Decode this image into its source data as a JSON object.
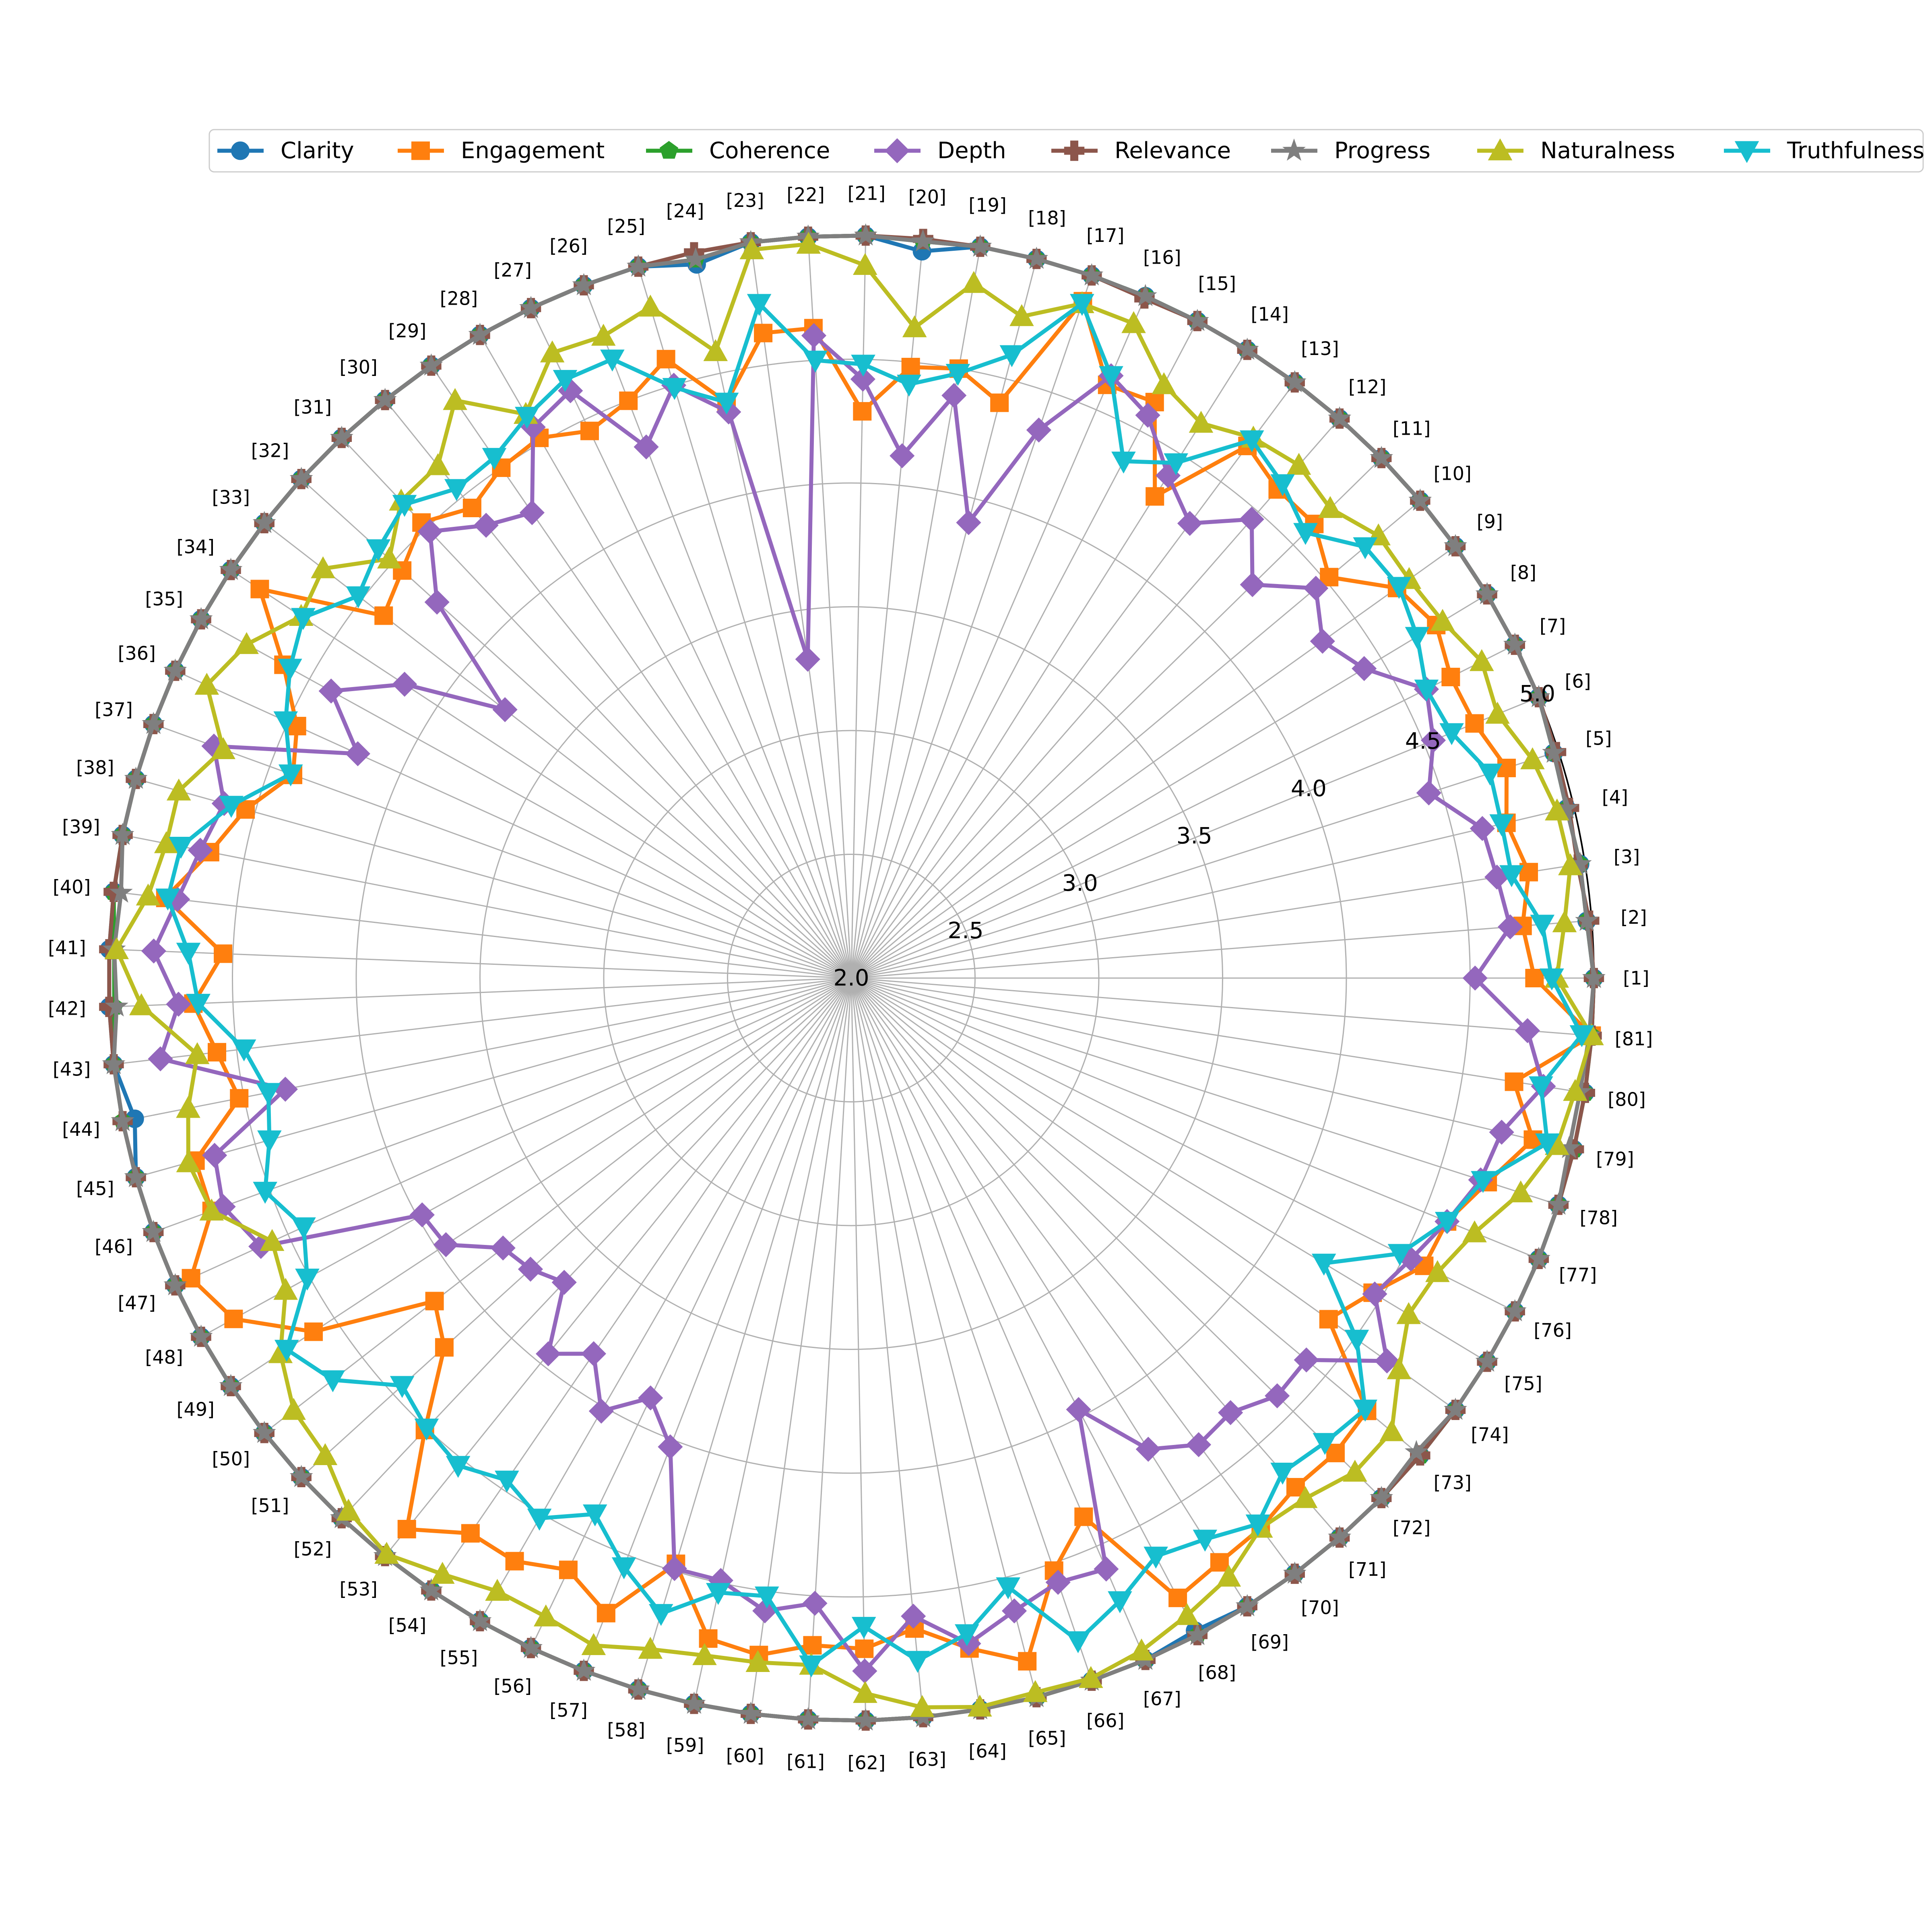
{
  "chart_data": {
    "type": "radar",
    "categories": [
      "[1]",
      "[2]",
      "[3]",
      "[4]",
      "[5]",
      "[6]",
      "[7]",
      "[8]",
      "[9]",
      "[10]",
      "[11]",
      "[12]",
      "[13]",
      "[14]",
      "[15]",
      "[16]",
      "[17]",
      "[18]",
      "[19]",
      "[20]",
      "[21]",
      "[22]",
      "[23]",
      "[24]",
      "[25]",
      "[26]",
      "[27]",
      "[28]",
      "[29]",
      "[30]",
      "[31]",
      "[32]",
      "[33]",
      "[34]",
      "[35]",
      "[36]",
      "[37]",
      "[38]",
      "[39]",
      "[40]",
      "[41]",
      "[42]",
      "[43]",
      "[44]",
      "[45]",
      "[46]",
      "[47]",
      "[48]",
      "[49]",
      "[50]",
      "[51]",
      "[52]",
      "[53]",
      "[54]",
      "[55]",
      "[56]",
      "[57]",
      "[58]",
      "[59]",
      "[60]",
      "[61]",
      "[62]",
      "[63]",
      "[64]",
      "[65]",
      "[66]",
      "[67]",
      "[68]",
      "[69]",
      "[70]",
      "[71]",
      "[72]",
      "[73]",
      "[74]",
      "[75]",
      "[76]",
      "[77]",
      "[78]",
      "[79]",
      "[80]",
      "[81]"
    ],
    "rlim": [
      2.0,
      5.0
    ],
    "rticks": [
      2.0,
      2.5,
      3.0,
      3.5,
      4.0,
      4.5,
      5.0
    ],
    "rtick_labels": [
      "2.0",
      "2.5",
      "3.0",
      "3.5",
      "4.0",
      "4.5",
      "5.0"
    ],
    "grid": true,
    "legend_position": "top",
    "series": [
      {
        "name": "Clarity",
        "color": "#1f77b4",
        "marker": "circle",
        "values": [
          5,
          4.98,
          4.98,
          4.97,
          4.98,
          5,
          5,
          5,
          5,
          5,
          5,
          5,
          5,
          5,
          5,
          5,
          5,
          5,
          5,
          4.95,
          5,
          5,
          5,
          4.95,
          5,
          5,
          5,
          5,
          5,
          5,
          5,
          5,
          5,
          5,
          5,
          5,
          5,
          5,
          5,
          5,
          5,
          5,
          5,
          4.95,
          5,
          5,
          5,
          5,
          5,
          5,
          5,
          5,
          5,
          5,
          5,
          5,
          5,
          5,
          5,
          5,
          5,
          5,
          5,
          5,
          5,
          5,
          5,
          4.98,
          5,
          5,
          5,
          5,
          5,
          5,
          5,
          5,
          5,
          5,
          5,
          5,
          5
        ]
      },
      {
        "name": "Engagement",
        "color": "#ff7f0e",
        "marker": "square",
        "values": [
          4.76,
          4.72,
          4.77,
          4.72,
          4.78,
          4.72,
          4.71,
          4.76,
          4.71,
          4.52,
          4.62,
          4.62,
          4.68,
          4.3,
          4.63,
          4.61,
          4.89,
          4.4,
          4.5,
          4.48,
          4.29,
          4.63,
          4.63,
          4.38,
          4.61,
          4.5,
          4.45,
          4.52,
          4.5,
          4.44,
          4.53,
          4.45,
          4.39,
          4.86,
          4.62,
          4.46,
          4.4,
          4.54,
          4.64,
          4.79,
          4.54,
          4.66,
          4.58,
          4.52,
          4.75,
          4.75,
          4.93,
          4.85,
          4.6,
          4.13,
          4.22,
          4.51,
          4.86,
          4.72,
          4.72,
          4.65,
          4.75,
          4.47,
          4.73,
          4.76,
          4.7,
          4.71,
          4.64,
          4.75,
          4.85,
          4.53,
          4.37,
          4.83,
          4.79,
          4.77,
          4.73,
          4.74,
          4.72,
          4.37,
          4.46,
          4.59,
          4.6,
          4.7,
          4.83,
          4.71,
          5
        ]
      },
      {
        "name": "Coherence",
        "color": "#2ca02c",
        "marker": "pentagon",
        "values": [
          5,
          4.98,
          4.98,
          4.97,
          4.98,
          5,
          5,
          5,
          5,
          5,
          5,
          5,
          5,
          5,
          5,
          5,
          5,
          5,
          5,
          4.99,
          5,
          5,
          5,
          4.97,
          5,
          5,
          5,
          5,
          5,
          5,
          5,
          5,
          5,
          5,
          5,
          5,
          5,
          5,
          5,
          5,
          4.98,
          4.98,
          5,
          5,
          5,
          5,
          5,
          5,
          5,
          5,
          5,
          5,
          5,
          5,
          5,
          5,
          5,
          5,
          5,
          5,
          5,
          5,
          5,
          5,
          5,
          5,
          5,
          5,
          5,
          5,
          5,
          5,
          5,
          5,
          5,
          5,
          5,
          5,
          5,
          5,
          5
        ]
      },
      {
        "name": "Depth",
        "color": "#9467bd",
        "marker": "diamond",
        "values": [
          4.52,
          4.67,
          4.64,
          4.62,
          4.45,
          4.54,
          4.6,
          4.42,
          4.34,
          4.45,
          4.27,
          4.46,
          4.29,
          4.4,
          4.57,
          4.65,
          4.34,
          3.9,
          4.39,
          4.12,
          4.42,
          4.6,
          3.3,
          4.34,
          4.5,
          4.3,
          4.63,
          4.57,
          4.28,
          4.35,
          4.48,
          4.26,
          3.77,
          4.16,
          4.4,
          4.19,
          4.74,
          4.63,
          4.68,
          4.74,
          4.82,
          4.72,
          4.81,
          4.33,
          4.67,
          4.7,
          4.62,
          3.98,
          3.96,
          3.78,
          3.75,
          3.69,
          3.95,
          3.84,
          4.02,
          3.88,
          4.03,
          4.49,
          4.49,
          4.58,
          4.53,
          4.8,
          4.59,
          4.73,
          4.64,
          4.58,
          4.6,
          3.97,
          4.25,
          4.35,
          4.33,
          4.41,
          4.4,
          4.66,
          4.47,
          4.53,
          4.6,
          4.67,
          4.7,
          4.83,
          4.74
        ]
      },
      {
        "name": "Relevance",
        "color": "#8c564b",
        "marker": "plus",
        "values": [
          5,
          4.99,
          4.97,
          4.98,
          4.99,
          5,
          5,
          5,
          5,
          5,
          5,
          5,
          5,
          5,
          5,
          4.99,
          5,
          5,
          5,
          5,
          5,
          5,
          5,
          5,
          5,
          5,
          5,
          5,
          5,
          5,
          5,
          5,
          5,
          5,
          5,
          5,
          5,
          5,
          5,
          5,
          5,
          5,
          5,
          5,
          5,
          5,
          5,
          5,
          5,
          5,
          5,
          5,
          5,
          5,
          5,
          5,
          5,
          5,
          5,
          5,
          5,
          5,
          5,
          5,
          5,
          5,
          5,
          5,
          5,
          5,
          5,
          5,
          5,
          5,
          5,
          5,
          5,
          5,
          5,
          5,
          5
        ]
      },
      {
        "name": "Progress",
        "color": "#7f7f7f",
        "marker": "star",
        "values": [
          5,
          4.98,
          4.98,
          4.97,
          4.98,
          5,
          5,
          5,
          5,
          5,
          5,
          5,
          5,
          5,
          5,
          5,
          5,
          5,
          5,
          4.99,
          5,
          5,
          5,
          4.97,
          5,
          5,
          5,
          5,
          5,
          5,
          5,
          5,
          5,
          5,
          5,
          5,
          5,
          5,
          5,
          4.97,
          4.98,
          4.97,
          5,
          5,
          5,
          5,
          5,
          5,
          5,
          5,
          5,
          5,
          5,
          5,
          5,
          5,
          5,
          5,
          5,
          5,
          5,
          5,
          5,
          5,
          5,
          5,
          5,
          5,
          5,
          5,
          5,
          5,
          4.98,
          5,
          5,
          5,
          5,
          5,
          4.98,
          4.98,
          4.99
        ]
      },
      {
        "name": "Naturalness",
        "color": "#bcbd22",
        "marker": "triangle-up",
        "values": [
          4.85,
          4.89,
          4.94,
          4.93,
          4.89,
          4.82,
          4.85,
          4.79,
          4.77,
          4.78,
          4.71,
          4.75,
          4.72,
          4.65,
          4.71,
          4.88,
          4.88,
          4.76,
          4.85,
          4.64,
          4.88,
          4.97,
          4.97,
          4.59,
          4.83,
          4.78,
          4.8,
          4.63,
          4.83,
          4.66,
          4.65,
          4.52,
          4.7,
          4.66,
          4.79,
          4.86,
          4.7,
          4.82,
          4.82,
          4.86,
          4.97,
          4.87,
          4.66,
          4.73,
          4.78,
          4.75,
          4.57,
          4.61,
          4.76,
          4.85,
          4.87,
          4.96,
          4.99,
          4.92,
          4.86,
          4.86,
          4.89,
          4.83,
          4.8,
          4.79,
          4.78,
          4.89,
          4.96,
          4.99,
          4.98,
          4.99,
          4.96,
          4.91,
          4.86,
          4.77,
          4.79,
          4.85,
          4.85,
          4.72,
          4.63,
          4.65,
          4.72,
          4.84,
          4.93,
          4.96,
          5
        ]
      },
      {
        "name": "Truthfulness",
        "color": "#17becf",
        "marker": "triangle-down",
        "values": [
          4.83,
          4.8,
          4.7,
          4.7,
          4.71,
          4.62,
          4.6,
          4.67,
          4.72,
          4.71,
          4.57,
          4.65,
          4.71,
          4.46,
          4.36,
          4.65,
          4.88,
          4.6,
          4.48,
          4.41,
          4.48,
          4.5,
          4.75,
          4.38,
          4.49,
          4.68,
          4.68,
          4.62,
          4.55,
          4.54,
          4.63,
          4.58,
          4.52,
          4.65,
          4.59,
          4.51,
          4.41,
          4.6,
          4.76,
          4.78,
          4.68,
          4.64,
          4.47,
          4.4,
          4.44,
          4.52,
          4.43,
          4.51,
          4.73,
          4.65,
          4.45,
          4.5,
          4.53,
          4.46,
          4.52,
          4.4,
          4.55,
          4.68,
          4.54,
          4.52,
          4.78,
          4.62,
          4.77,
          4.69,
          4.54,
          4.83,
          4.74,
          4.64,
          4.68,
          4.75,
          4.65,
          4.68,
          4.71,
          4.51,
          4.23,
          4.48,
          4.6,
          4.68,
          4.89,
          4.82,
          4.96
        ]
      }
    ]
  }
}
